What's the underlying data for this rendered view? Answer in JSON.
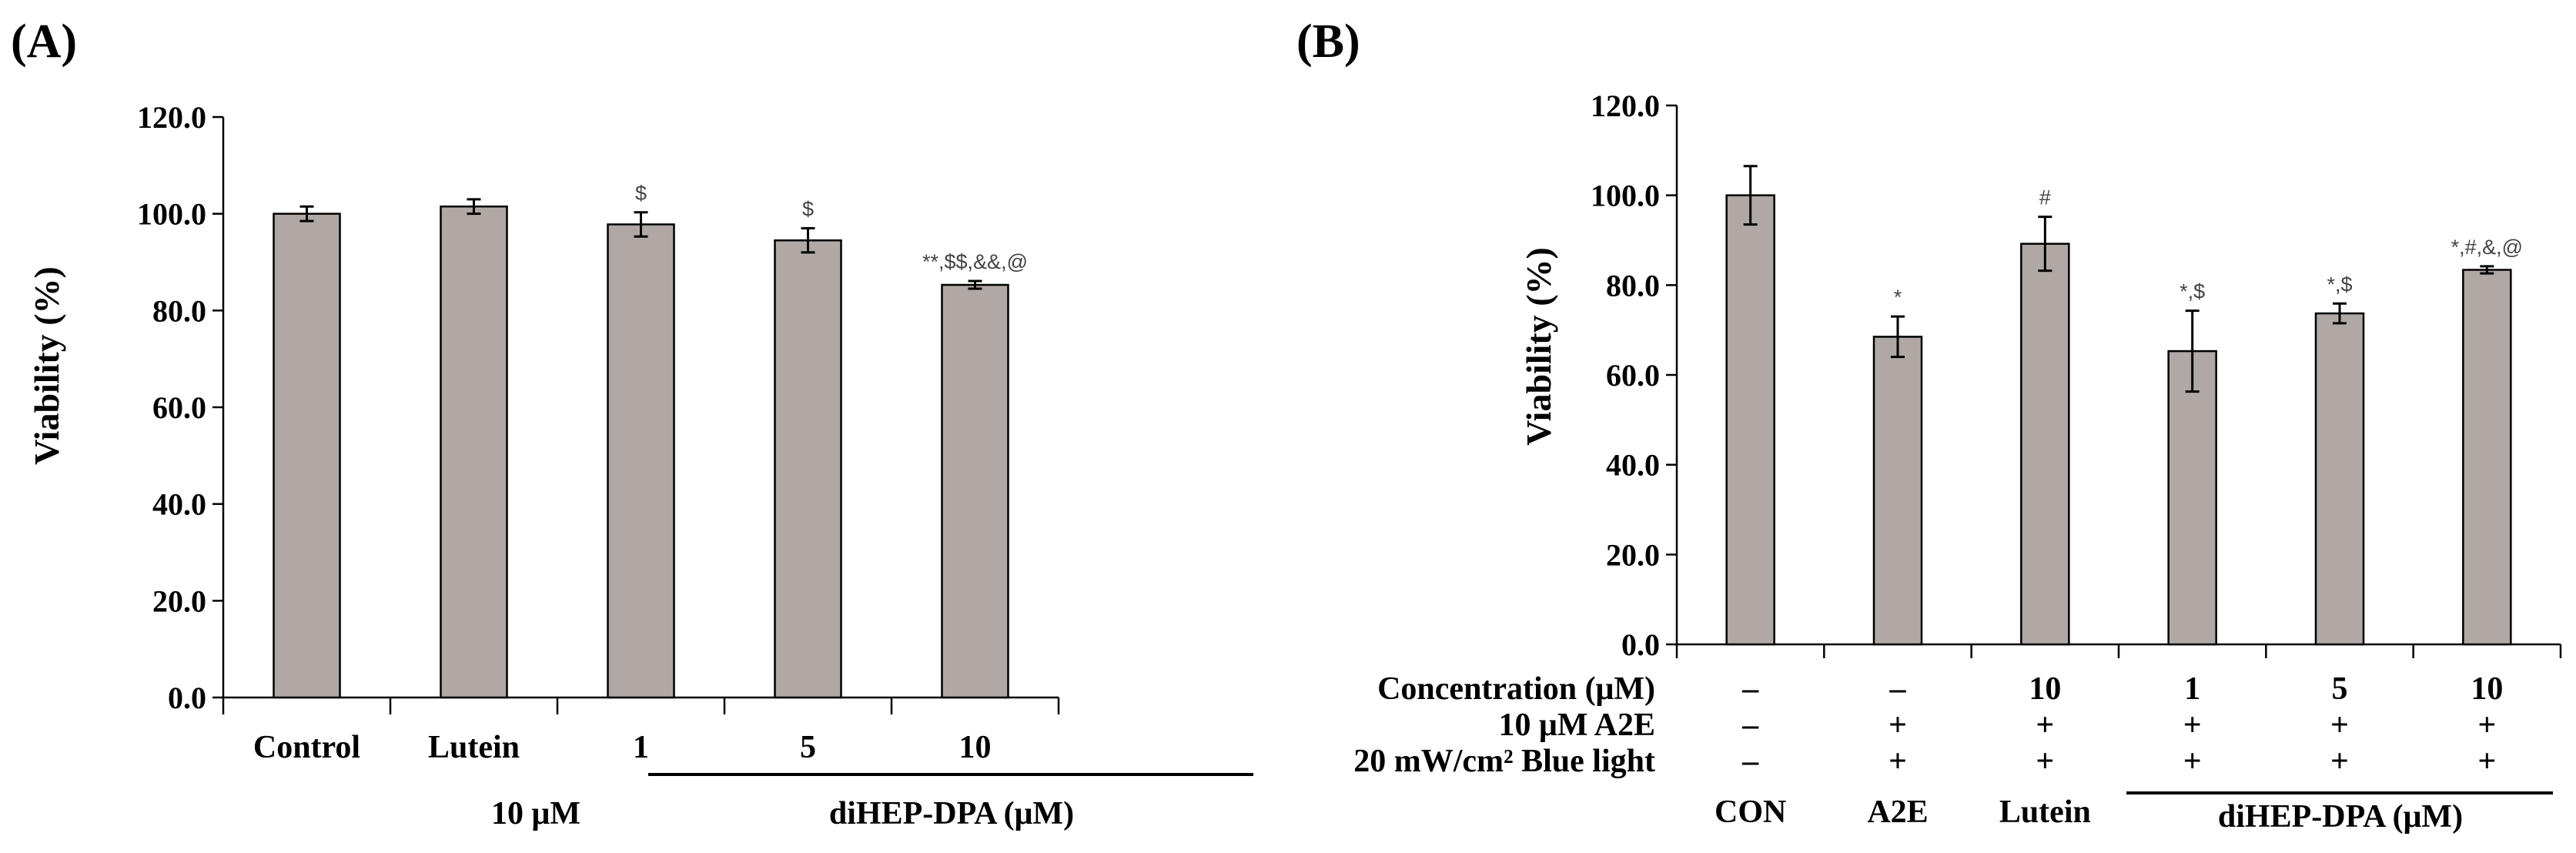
{
  "chart_data": [
    {
      "type": "bar",
      "panel_label": "(A)",
      "ylabel": "Viability (%)",
      "ylim": [
        0,
        120
      ],
      "yticks": [
        "0.0",
        "20.0",
        "40.0",
        "60.0",
        "80.0",
        "100.0",
        "120.0"
      ],
      "categories": [
        "Control",
        "Lutein",
        "1",
        "5",
        "10"
      ],
      "values": [
        100.0,
        101.5,
        97.8,
        94.5,
        85.3
      ],
      "errors": [
        1.5,
        1.5,
        2.5,
        2.5,
        0.8
      ],
      "annotations": [
        "",
        "",
        "$",
        "$",
        "**,$$,&&,@"
      ],
      "group_labels": {
        "lutein_dose": "10 μM",
        "drug": "diHEP-DPA (μM)"
      }
    },
    {
      "type": "bar",
      "panel_label": "(B)",
      "ylabel": "Viability (%)",
      "ylim": [
        0,
        120
      ],
      "yticks": [
        "0.0",
        "20.0",
        "40.0",
        "60.0",
        "80.0",
        "100.0",
        "120.0"
      ],
      "categories": [
        "CON",
        "A2E",
        "Lutein",
        "",
        "",
        ""
      ],
      "values": [
        100.0,
        68.5,
        89.2,
        65.3,
        73.7,
        83.4
      ],
      "errors": [
        6.5,
        4.5,
        6.0,
        9.0,
        2.2,
        0.8
      ],
      "annotations": [
        "",
        "*",
        "#",
        "*,$",
        "*,$",
        "*,#,&,@"
      ],
      "table": {
        "rows": [
          {
            "label": "Concentration (μM)",
            "cells": [
              "–",
              "–",
              "10",
              "1",
              "5",
              "10"
            ]
          },
          {
            "label": "10 μM  A2E",
            "cells": [
              "–",
              "+",
              "+",
              "+",
              "+",
              "+"
            ]
          },
          {
            "label": "20 mW/cm² Blue light",
            "cells": [
              "–",
              "+",
              "+",
              "+",
              "+",
              "+"
            ]
          }
        ]
      },
      "group_labels": {
        "drug": "diHEP-DPA (μM)"
      }
    }
  ]
}
